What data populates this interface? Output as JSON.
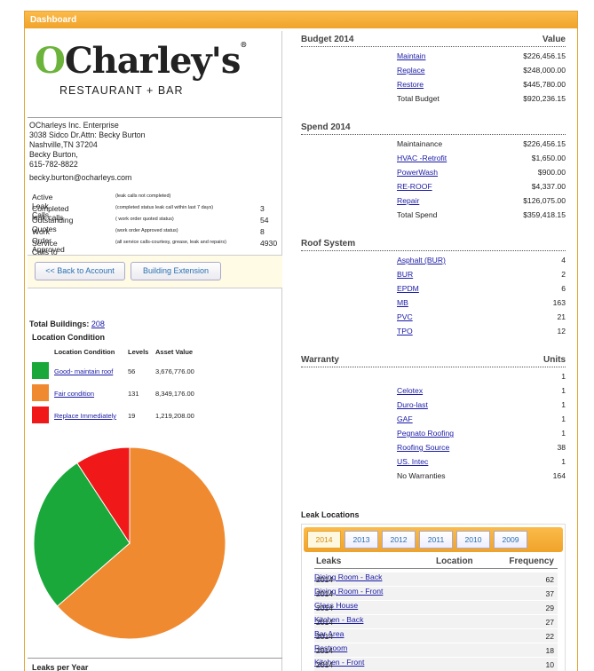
{
  "header": {
    "title": "Dashboard"
  },
  "logo": {
    "brand": "O'Charley's",
    "tagline": "RESTAURANT + BAR",
    "reg": "®"
  },
  "account": {
    "address_lines": [
      "OCharleys Inc. Enterprise",
      "3038 Sidco Dr.Attn: Becky Burton",
      "Nashville,TN 37204",
      "Becky Burton,",
      "615-782-8822"
    ],
    "email": "becky.burton@ocharleys.com"
  },
  "stats": [
    {
      "label": "Active Leak Calls",
      "note": "(leak calls not completed)",
      "value": ""
    },
    {
      "label": "Completed leak calls",
      "note": "(completed status leak call within last 7 days)",
      "value": "3"
    },
    {
      "label": "Outstanding Quotes",
      "note": "( work order quoted status)",
      "value": "54"
    },
    {
      "label": "Work Order Approved",
      "note": "(work order Approved status)",
      "value": "8"
    },
    {
      "label": "Service Calls to Date",
      "note": "(all service calls-courtesy, grease, leak and repairs)",
      "value": "4930"
    }
  ],
  "buttons": {
    "back": "<< Back to Account",
    "extension": "Building Extension"
  },
  "buildings": {
    "label": "Total Buildings:",
    "count": "208"
  },
  "location_condition": {
    "title": "Location Condition",
    "headers": {
      "condition": "Location Condition",
      "levels": "Levels",
      "asset": "Asset Value"
    },
    "rows": [
      {
        "name": "Good- maintain roof",
        "levels": "56",
        "asset": "3,676,776.00",
        "color": "#1aa83a"
      },
      {
        "name": "Fair condition",
        "levels": "131",
        "asset": "8,349,176.00",
        "color": "#f08a30"
      },
      {
        "name": "Replace Immediately",
        "levels": "19",
        "asset": "1,219,208.00",
        "color": "#f01818"
      }
    ]
  },
  "chart_data": {
    "type": "pie",
    "labels": [
      "Good- maintain roof",
      "Fair condition",
      "Replace Immediately"
    ],
    "values": [
      56,
      131,
      19
    ],
    "colors": [
      "#1aa83a",
      "#f08a30",
      "#f01818"
    ]
  },
  "leaks_per_year": {
    "title": "Leaks per Year"
  },
  "budget": {
    "title": "Budget 2014",
    "value_header": "Value",
    "rows": [
      {
        "label": "Maintain",
        "value": "$226,456.15",
        "link": true
      },
      {
        "label": "Replace",
        "value": "$248,000.00",
        "link": true
      },
      {
        "label": "Restore",
        "value": "$445,780.00",
        "link": true
      },
      {
        "label": "Total Budget",
        "value": "$920,236.15",
        "link": false
      }
    ]
  },
  "spend": {
    "title": "Spend 2014",
    "rows": [
      {
        "label": "Maintainance",
        "value": "$226,456.15",
        "link": false
      },
      {
        "label": "HVAC -Retrofit",
        "value": "$1,650.00",
        "link": true
      },
      {
        "label": "PowerWash",
        "value": "$900.00",
        "link": true
      },
      {
        "label": "RE-ROOF",
        "value": "$4,337.00",
        "link": true
      },
      {
        "label": "Repair",
        "value": "$126,075.00",
        "link": true
      },
      {
        "label": "Total Spend",
        "value": "$359,418.15",
        "link": false
      }
    ]
  },
  "roof_system": {
    "title": "Roof System",
    "rows": [
      {
        "label": "Asphalt (BUR)",
        "value": "4"
      },
      {
        "label": "BUR",
        "value": "2"
      },
      {
        "label": "EPDM",
        "value": "6"
      },
      {
        "label": "MB",
        "value": "163"
      },
      {
        "label": "PVC",
        "value": "21"
      },
      {
        "label": "TPO",
        "value": "12"
      }
    ]
  },
  "warranty": {
    "title": "Warranty",
    "units_header": "Units",
    "rows": [
      {
        "label": "",
        "value": "1",
        "link": false
      },
      {
        "label": "Celotex",
        "value": "1",
        "link": true
      },
      {
        "label": "Duro-last",
        "value": "1",
        "link": true
      },
      {
        "label": "GAF",
        "value": "1",
        "link": true
      },
      {
        "label": "Pegnato Roofing",
        "value": "1",
        "link": true
      },
      {
        "label": "Roofing Source",
        "value": "38",
        "link": true
      },
      {
        "label": "US. Intec",
        "value": "1",
        "link": true
      },
      {
        "label": "No Warranties",
        "value": "164",
        "link": false
      }
    ]
  },
  "leak_locations": {
    "title": "Leak Locations",
    "tabs": [
      "2014",
      "2013",
      "2012",
      "2011",
      "2010",
      "2009"
    ],
    "active_tab": "2014",
    "headers": {
      "leaks": "Leaks",
      "location": "Location",
      "frequency": "Frequency"
    },
    "rows": [
      {
        "year": "2014",
        "location": "Dining Room - Back",
        "frequency": "62"
      },
      {
        "year": "2014",
        "location": "Dining Room - Front",
        "frequency": "37"
      },
      {
        "year": "2014",
        "location": "Glass House",
        "frequency": "29"
      },
      {
        "year": "2014",
        "location": "Kitchen - Back",
        "frequency": "27"
      },
      {
        "year": "2014",
        "location": "Bar Area",
        "frequency": "22"
      },
      {
        "year": "2014",
        "location": "Restroom",
        "frequency": "18"
      },
      {
        "year": "2014",
        "location": "Kitchen - Front",
        "frequency": "10"
      }
    ]
  }
}
